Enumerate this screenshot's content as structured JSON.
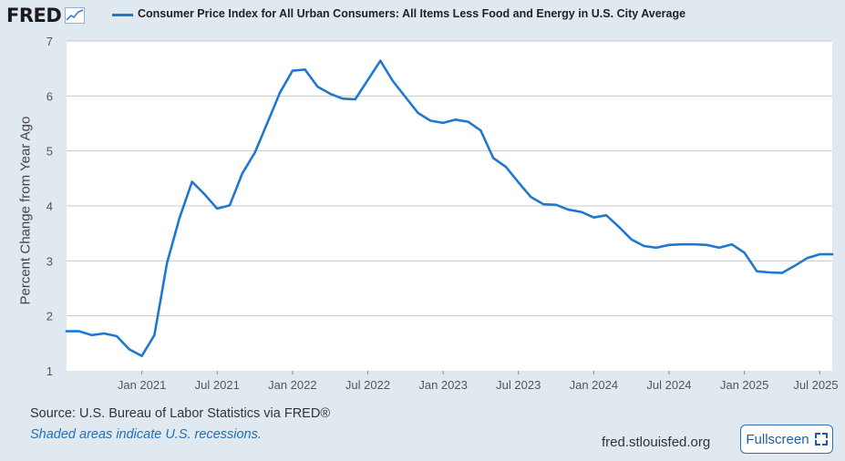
{
  "header": {
    "logo_text": "FRED",
    "legend_label": "Consumer Price Index for All Urban Consumers: All Items Less Food and Energy in U.S. City Average"
  },
  "colors": {
    "series": "#1f77d0",
    "background": "#e1e9f0",
    "plot": "#ffffff",
    "grid": "#c8c8c8"
  },
  "chart_data": {
    "type": "line",
    "title": "",
    "xlabel": "",
    "ylabel": "Percent Change from Year Ago",
    "ylim": [
      1,
      7
    ],
    "yticks": [
      1,
      2,
      3,
      4,
      5,
      6,
      7
    ],
    "xticks": [
      "Jan 2021",
      "Jul 2021",
      "Jan 2022",
      "Jul 2022",
      "Jan 2023",
      "Jul 2023",
      "Jan 2024",
      "Jul 2024",
      "Jan 2025",
      "Jul 2025"
    ],
    "grid": "horizontal",
    "x": [
      "2020-07",
      "2020-08",
      "2020-09",
      "2020-10",
      "2020-11",
      "2020-12",
      "2021-01",
      "2021-02",
      "2021-03",
      "2021-04",
      "2021-05",
      "2021-06",
      "2021-07",
      "2021-08",
      "2021-09",
      "2021-10",
      "2021-11",
      "2021-12",
      "2022-01",
      "2022-02",
      "2022-03",
      "2022-04",
      "2022-05",
      "2022-06",
      "2022-07",
      "2022-08",
      "2022-09",
      "2022-10",
      "2022-11",
      "2022-12",
      "2023-01",
      "2023-02",
      "2023-03",
      "2023-04",
      "2023-05",
      "2023-06",
      "2023-07",
      "2023-08",
      "2023-09",
      "2023-10",
      "2023-11",
      "2023-12",
      "2024-01",
      "2024-02",
      "2024-03",
      "2024-04",
      "2024-05",
      "2024-06",
      "2024-07",
      "2024-08",
      "2024-09",
      "2024-10",
      "2024-11",
      "2024-12",
      "2025-01",
      "2025-02",
      "2025-03",
      "2025-04",
      "2025-05",
      "2025-06",
      "2025-07",
      "2025-08"
    ],
    "series": [
      {
        "values": [
          1.72,
          1.72,
          1.65,
          1.68,
          1.63,
          1.39,
          1.27,
          1.65,
          2.96,
          3.78,
          4.44,
          4.21,
          3.95,
          4.01,
          4.59,
          4.97,
          5.51,
          6.06,
          6.46,
          6.48,
          6.17,
          6.04,
          5.95,
          5.94,
          6.29,
          6.64,
          6.27,
          5.98,
          5.69,
          5.55,
          5.51,
          5.57,
          5.53,
          5.37,
          4.87,
          4.71,
          4.43,
          4.16,
          4.03,
          4.02,
          3.93,
          3.89,
          3.79,
          3.83,
          3.62,
          3.39,
          3.27,
          3.24,
          3.29,
          3.3,
          3.3,
          3.29,
          3.24,
          3.3,
          3.15,
          2.81,
          2.79,
          2.78,
          2.91,
          3.05,
          3.12,
          3.12
        ]
      }
    ]
  },
  "footer": {
    "source": "Source: U.S. Bureau of Labor Statistics via FRED®",
    "shaded_note": "Shaded areas indicate U.S. recessions.",
    "site": "fred.stlouisfed.org",
    "fullscreen_label": "Fullscreen"
  }
}
